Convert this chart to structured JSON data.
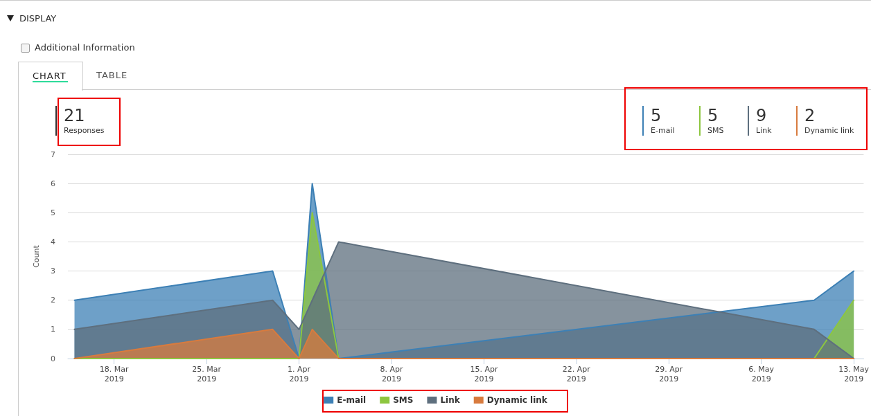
{
  "chart_data": {
    "type": "area",
    "ylabel": "Count",
    "annotations": [
      "DISPLAY",
      "Additional Information",
      "CHART",
      "TABLE",
      "21",
      "Responses",
      "5",
      "E-mail",
      "5",
      "SMS",
      "9",
      "Link",
      "2",
      "Dynamic link"
    ],
    "x": [
      "2019-03-15",
      "2019-03-30",
      "2019-04-01",
      "2019-04-02",
      "2019-04-04",
      "2019-05-10",
      "2019-05-13"
    ],
    "series": [
      {
        "name": "E-mail",
        "color": "#3d80b5",
        "values": [
          2,
          3,
          0,
          6,
          0,
          2,
          3
        ]
      },
      {
        "name": "SMS",
        "color": "#8dc63f",
        "values": [
          0,
          0,
          0,
          5,
          0,
          0,
          2
        ]
      },
      {
        "name": "Link",
        "color": "#5e6f7e",
        "values": [
          1,
          2,
          1,
          2,
          4,
          1,
          0
        ]
      },
      {
        "name": "Dynamic link",
        "color": "#d87b3e",
        "values": [
          0,
          1,
          0,
          1,
          0,
          0,
          0
        ]
      }
    ],
    "xlim": [
      "2019-03-14T12:00",
      "2019-05-13T18:00"
    ],
    "xticks": [
      {
        "value": "2019-03-18",
        "label": "18. Mar\n2019"
      },
      {
        "value": "2019-03-25",
        "label": "25. Mar\n2019"
      },
      {
        "value": "2019-04-01",
        "label": "1. Apr\n2019"
      },
      {
        "value": "2019-04-08",
        "label": "8. Apr\n2019"
      },
      {
        "value": "2019-04-15",
        "label": "15. Apr\n2019"
      },
      {
        "value": "2019-04-22",
        "label": "22. Apr\n2019"
      },
      {
        "value": "2019-04-29",
        "label": "29. Apr\n2019"
      },
      {
        "value": "2019-05-06",
        "label": "6. May\n2019"
      },
      {
        "value": "2019-05-13",
        "label": "13. May\n2019"
      }
    ],
    "ylim": [
      0,
      7
    ],
    "yticks": [
      0,
      1,
      2,
      3,
      4,
      5,
      6,
      7
    ],
    "grid": "y",
    "legend": "bottom",
    "marker": "none",
    "line_style": "solid"
  }
}
